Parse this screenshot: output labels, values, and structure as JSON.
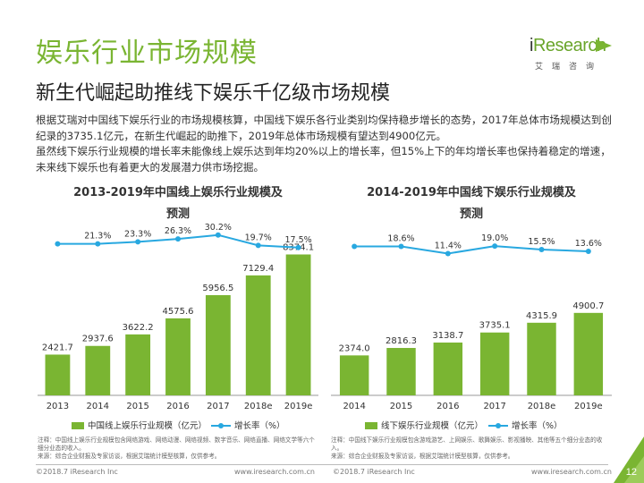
{
  "header": {
    "title": "娱乐行业市场规模",
    "subtitle": "新生代崛起助推线下娱乐千亿级市场规模"
  },
  "logo": {
    "brand_i": "i",
    "brand_rest": "Research",
    "sub": "艾瑞咨询",
    "color": "#7ab532"
  },
  "body": {
    "para1": "根据艾瑞对中国线下娱乐行业的市场规模核算，中国线下娱乐各行业类别均保持稳步增长的态势，2017年总体市场规模达到创纪录的3735.1亿元，在新生代崛起的助推下，2019年总体市场规模有望达到4900亿元。",
    "para2": "虽然线下娱乐行业规模的增长率未能像线上娱乐达到年均20%以上的增长率，但15%上下的年均增长率也保持着稳定的增速，未来线下娱乐也有着更大的发展潜力供市场挖掘。"
  },
  "chart_data": [
    {
      "type": "bar",
      "title": "2013-2019年中国线上娱乐行业规模及预测",
      "title_line1": "2013-2019年中国线上娱乐行业规模及",
      "title_line2": "预测",
      "categories": [
        "2013",
        "2014",
        "2015",
        "2016",
        "2017",
        "2018e",
        "2019e"
      ],
      "series": [
        {
          "name": "中国线上娱乐行业规模（亿元）",
          "type": "bar",
          "color": "#7ab532",
          "values": [
            2421.7,
            2937.6,
            3622.2,
            4575.6,
            5956.5,
            7129.4,
            8374.1
          ],
          "labels": [
            "2421.7",
            "2937.6",
            "3622.2",
            "4575.6",
            "5956.5",
            "7129.4",
            "8374.1"
          ]
        },
        {
          "name": "增长率（%）",
          "type": "line",
          "color": "#28a8e0",
          "values": [
            null,
            21.3,
            23.3,
            26.3,
            30.2,
            19.7,
            17.5
          ],
          "labels": [
            "",
            "21.3%",
            "23.3%",
            "26.3%",
            "30.2%",
            "19.7%",
            "17.5%"
          ]
        }
      ],
      "ylim": [
        0,
        8400
      ],
      "line_ylim": [
        0,
        60
      ],
      "note": "注释：中国线上娱乐行业规模包含网络游戏、网络动漫、网络视频、数字音乐、网络直播、网络文学等六个细分业态的收入。",
      "source": "来源：综合企业财报及专家访谈，根据艾瑞统计模型核算，仅供参考。"
    },
    {
      "type": "bar",
      "title": "2014-2019年中国线下娱乐行业规模及预测",
      "title_line1": "2014-2019年中国线下娱乐行业规模及",
      "title_line2": "预测",
      "categories": [
        "2014",
        "2015",
        "2016",
        "2017",
        "2018e",
        "2019e"
      ],
      "series": [
        {
          "name": "线下娱乐行业规模（亿元）",
          "type": "bar",
          "color": "#7ab532",
          "values": [
            2374.0,
            2816.3,
            3138.7,
            3735.1,
            4315.9,
            4900.7
          ],
          "labels": [
            "2374.0",
            "2816.3",
            "3138.7",
            "3735.1",
            "4315.9",
            "4900.7"
          ]
        },
        {
          "name": "增长率（%）",
          "type": "line",
          "color": "#28a8e0",
          "values": [
            null,
            18.6,
            11.4,
            19.0,
            15.5,
            13.6
          ],
          "labels": [
            "",
            "18.6%",
            "11.4%",
            "19.0%",
            "15.5%",
            "13.6%"
          ]
        }
      ],
      "ylim": [
        0,
        8400
      ],
      "line_ylim": [
        0,
        60
      ],
      "note": "注释：中国线下娱乐行业规模包含游戏游艺、上网娱乐、歌舞娱乐、影视播映、其他等五个细分业态的收入。",
      "source": "来源：综合企业财报及专家访谈，根据艾瑞统计模型核算，仅供参考。"
    }
  ],
  "footer": {
    "copyright": "©2018.7 iResearch Inc",
    "url": "www.iresearch.com.cn",
    "page_number": "12"
  }
}
